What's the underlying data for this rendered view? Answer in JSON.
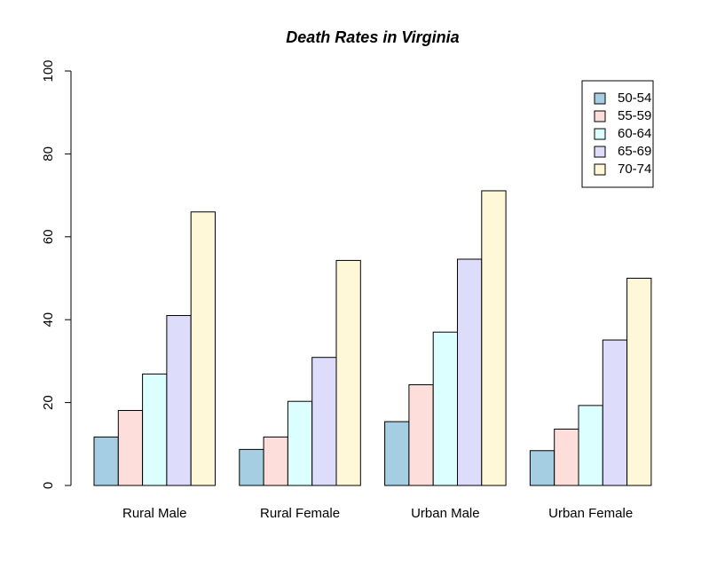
{
  "chart_data": {
    "type": "bar",
    "title": "Death Rates in Virginia",
    "xlabel": "",
    "ylabel": "",
    "ylim": [
      0,
      100
    ],
    "yticks": [
      0,
      20,
      40,
      60,
      80,
      100
    ],
    "grid": false,
    "legend_position": "top-right",
    "categories": [
      "Rural Male",
      "Rural Female",
      "Urban Male",
      "Urban Female"
    ],
    "series": [
      {
        "name": "50-54",
        "color": "#a6cee3",
        "values": [
          11.7,
          8.7,
          15.4,
          8.4
        ]
      },
      {
        "name": "55-59",
        "color": "#fddedb",
        "values": [
          18.1,
          11.7,
          24.3,
          13.6
        ]
      },
      {
        "name": "60-64",
        "color": "#dcffff",
        "values": [
          26.9,
          20.3,
          37.0,
          19.3
        ]
      },
      {
        "name": "65-69",
        "color": "#dedcfb",
        "values": [
          41.0,
          30.9,
          54.6,
          35.1
        ]
      },
      {
        "name": "70-74",
        "color": "#fff8d8",
        "values": [
          66.0,
          54.3,
          71.1,
          50.0
        ]
      }
    ]
  }
}
